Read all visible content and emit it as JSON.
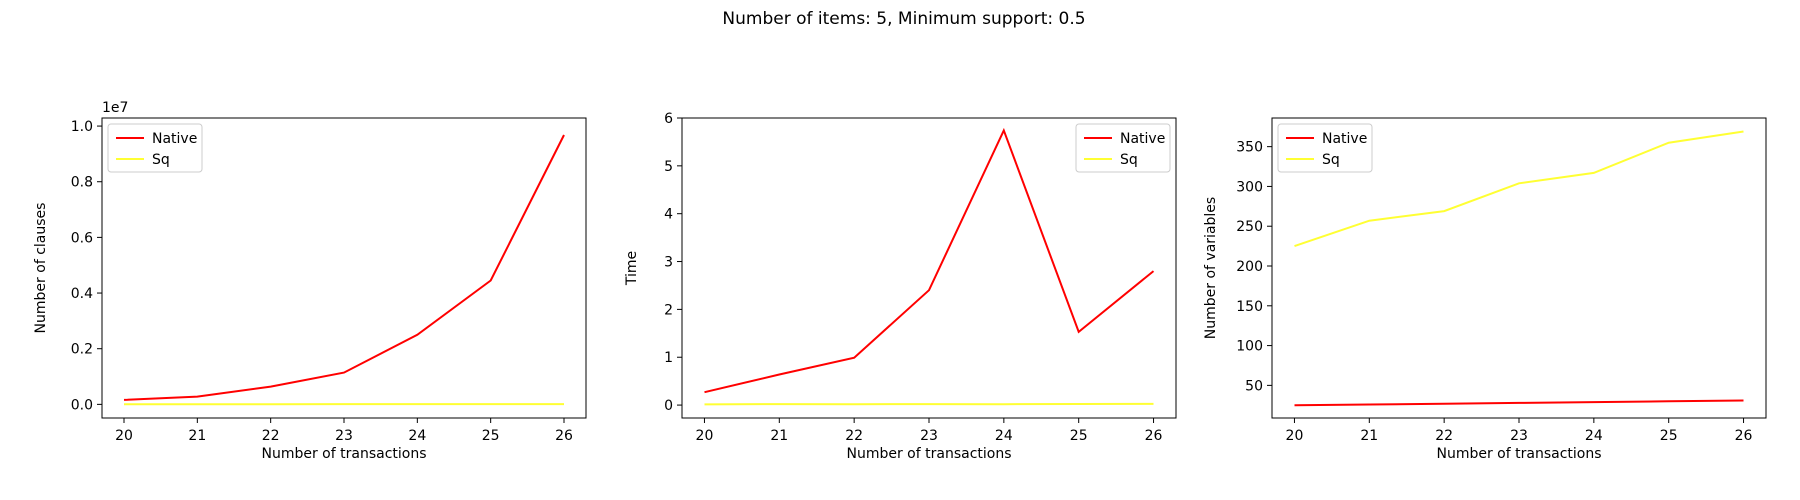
{
  "figure": {
    "title": "Number of items: 5, Minimum support: 0.5"
  },
  "colors": {
    "Native": "#ff0000",
    "Sq": "#ffff33"
  },
  "chart_data": [
    {
      "type": "line",
      "title": "",
      "xlabel": "Number of transactions",
      "ylabel": "Number of clauses",
      "scale_label": "1e7",
      "x": [
        20,
        21,
        22,
        23,
        24,
        25,
        26
      ],
      "xticks": [
        20,
        21,
        22,
        23,
        24,
        25,
        26
      ],
      "yticks": [
        0,
        2000000,
        4000000,
        6000000,
        8000000,
        10000000
      ],
      "ytick_labels": [
        "0.0",
        "0.2",
        "0.4",
        "0.6",
        "0.8",
        "1.0"
      ],
      "xlim": [
        19.7,
        26.3
      ],
      "ylim": [
        -490000,
        10290000
      ],
      "legend": "upper-left",
      "series": [
        {
          "name": "Native",
          "color": "#ff0000",
          "values": [
            160000,
            280000,
            640000,
            1140000,
            2500000,
            4450000,
            9680000
          ]
        },
        {
          "name": "Sq",
          "color": "#ffff33",
          "values": [
            5000,
            6000,
            7000,
            8000,
            9000,
            10000,
            11000
          ]
        }
      ]
    },
    {
      "type": "line",
      "title": "",
      "xlabel": "Number of transactions",
      "ylabel": "Time",
      "x": [
        20,
        21,
        22,
        23,
        24,
        25,
        26
      ],
      "xticks": [
        20,
        21,
        22,
        23,
        24,
        25,
        26
      ],
      "yticks": [
        0,
        1,
        2,
        3,
        4,
        5,
        6
      ],
      "ytick_labels": [
        "0",
        "1",
        "2",
        "3",
        "4",
        "5",
        "6"
      ],
      "xlim": [
        19.7,
        26.3
      ],
      "ylim": [
        -0.27,
        6.0
      ],
      "legend": "upper-right",
      "series": [
        {
          "name": "Native",
          "color": "#ff0000",
          "values": [
            0.27,
            0.64,
            0.99,
            2.4,
            5.74,
            1.53,
            2.8
          ]
        },
        {
          "name": "Sq",
          "color": "#ffff33",
          "values": [
            0.015,
            0.02,
            0.018,
            0.02,
            0.018,
            0.022,
            0.025
          ]
        }
      ]
    },
    {
      "type": "line",
      "title": "",
      "xlabel": "Number of transactions",
      "ylabel": "Number of variables",
      "x": [
        20,
        21,
        22,
        23,
        24,
        25,
        26
      ],
      "xticks": [
        20,
        21,
        22,
        23,
        24,
        25,
        26
      ],
      "yticks": [
        50,
        100,
        150,
        200,
        250,
        300,
        350
      ],
      "ytick_labels": [
        "50",
        "100",
        "150",
        "200",
        "250",
        "300",
        "350"
      ],
      "xlim": [
        19.7,
        26.3
      ],
      "ylim": [
        9,
        386
      ],
      "legend": "upper-left",
      "series": [
        {
          "name": "Native",
          "color": "#ff0000",
          "values": [
            25,
            26,
            27,
            28,
            29,
            30,
            31
          ]
        },
        {
          "name": "Sq",
          "color": "#ffff33",
          "values": [
            225,
            257,
            269,
            304,
            317,
            355,
            369
          ]
        }
      ]
    }
  ]
}
